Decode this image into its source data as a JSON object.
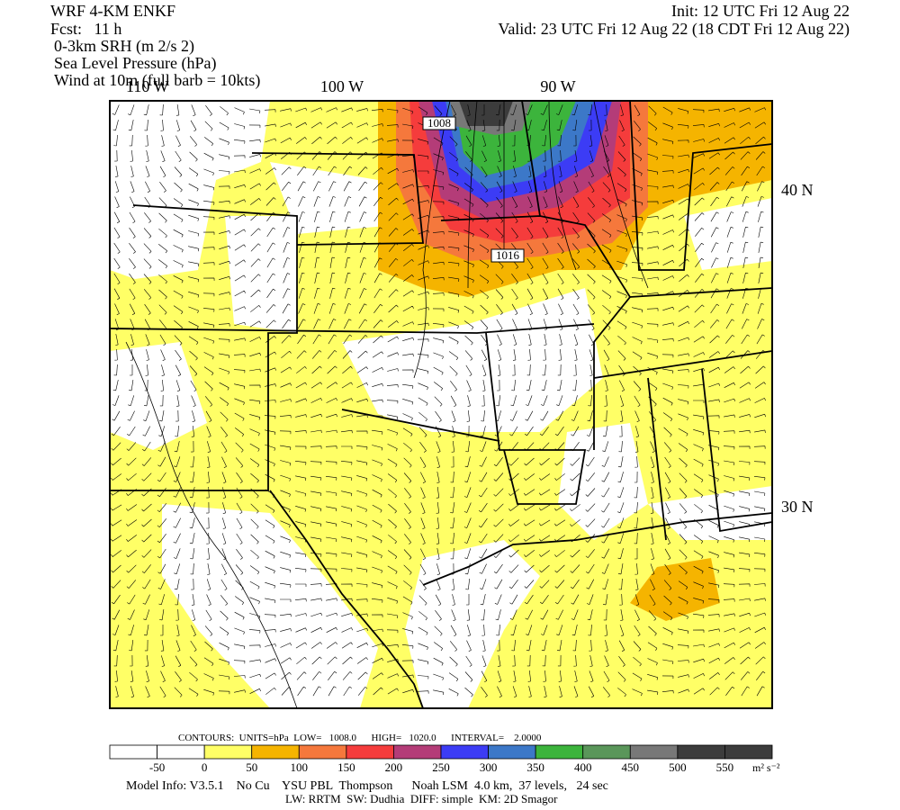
{
  "header": {
    "model": "WRF 4-KM ENKF",
    "forecast": "Fcst:   11 h",
    "fields": [
      "0-3km SRH (m 2/s 2)",
      "Sea Level Pressure (hPa)",
      "Wind at 10m (full barb = 10kts)"
    ],
    "init": "Init: 12 UTC Fri 12 Aug 22",
    "valid": "Valid: 23 UTC Fri 12 Aug 22 (18 CDT Fri 12 Aug 22)"
  },
  "map": {
    "longitude_labels": [
      "110 W",
      "100 W",
      "90 W"
    ],
    "latitude_labels": [
      "40 N",
      "30 N"
    ],
    "contour_labels": [
      "1008",
      "1016"
    ]
  },
  "contours": "CONTOURS:  UNITS=hPa  LOW=   1008.0      HIGH=   1020.0      INTERVAL=    2.0000",
  "colorbar": {
    "colors": [
      "#ffffff",
      "#ffffff",
      "#ffff66",
      "#f5b400",
      "#f5783c",
      "#f53c3c",
      "#b43c78",
      "#3c3cf5",
      "#3c78c8",
      "#3cb43c",
      "#5a965a",
      "#787878",
      "#3c3c3c",
      "#3c3c3c"
    ],
    "labels": [
      "-50",
      "0",
      "50",
      "100",
      "150",
      "200",
      "250",
      "300",
      "350",
      "400",
      "450",
      "500",
      "550"
    ],
    "units": "m² s⁻²"
  },
  "footer": [
    "Model Info: V3.5.1    No Cu    YSU PBL  Thompson      Noah LSM  4.0 km,  37 levels,   24 sec",
    "LW: RRTM  SW: Dudhia  DIFF: simple  KM: 2D Smagor"
  ]
}
